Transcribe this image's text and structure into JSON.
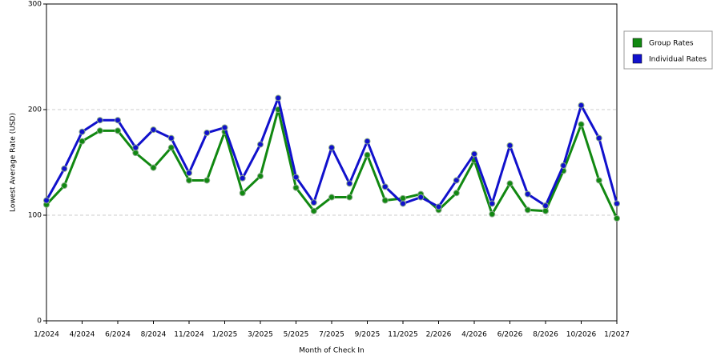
{
  "chart_data": {
    "type": "line",
    "x_label": "Month of Check In",
    "y_label": "Lowest Average Rate (USD)",
    "categories": [
      "1/2024",
      null,
      "4/2024",
      null,
      "6/2024",
      null,
      "8/2024",
      null,
      "11/2024",
      null,
      "1/2025",
      null,
      "3/2025",
      null,
      "5/2025",
      null,
      "7/2025",
      null,
      "9/2025",
      null,
      "11/2025",
      null,
      "2/2026",
      null,
      "4/2026",
      null,
      "6/2026",
      null,
      "8/2026",
      null,
      "10/2026",
      null,
      "1/2027"
    ],
    "series": [
      {
        "name": "Group Rates",
        "color": "#118811",
        "values": [
          110,
          128,
          170,
          180,
          180,
          159,
          145,
          164,
          133,
          133,
          179,
          121,
          137,
          200,
          126,
          104,
          117,
          117,
          157,
          114,
          116,
          120,
          105,
          121,
          152,
          101,
          130,
          105,
          104,
          142,
          186,
          133,
          97
        ]
      },
      {
        "name": "Individual Rates",
        "color": "#1111cc",
        "values": [
          114,
          144,
          179,
          190,
          190,
          164,
          181,
          173,
          140,
          178,
          183,
          135,
          167,
          211,
          136,
          112,
          164,
          130,
          170,
          127,
          111,
          117,
          108,
          133,
          158,
          111,
          166,
          120,
          109,
          147,
          204,
          173,
          111
        ]
      }
    ],
    "ylim": [
      0,
      300
    ],
    "yticks": [
      0,
      100,
      200,
      300
    ],
    "grid": true,
    "legend": "right"
  }
}
